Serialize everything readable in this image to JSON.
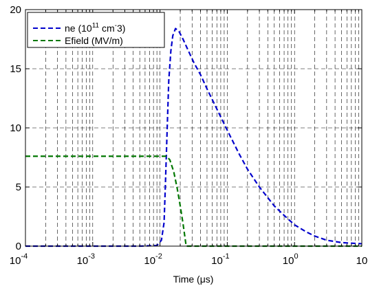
{
  "chart_data": {
    "type": "line",
    "title": "",
    "xlabel": "Time (μs)",
    "ylabel": "",
    "xscale": "log",
    "xlim": [
      0.0001,
      10
    ],
    "ylim": [
      0,
      20
    ],
    "grid": "dashed, major and minor on x, major on y",
    "x_ticks": [
      {
        "base": "10",
        "exp": "-4"
      },
      {
        "base": "10",
        "exp": "-3"
      },
      {
        "base": "10",
        "exp": "-2"
      },
      {
        "base": "10",
        "exp": "-1"
      },
      {
        "base": "10",
        "exp": "0"
      },
      {
        "base": "10",
        "exp": ""
      }
    ],
    "y_ticks": [
      "0",
      "5",
      "10",
      "15",
      "20"
    ],
    "legend_position": "top-left",
    "series": [
      {
        "name": "ne (10^11 cm^-3)",
        "legend": {
          "pre": "ne (10",
          "sup1": "11",
          "mid": " cm",
          "sup2": "-",
          "post": "3)"
        },
        "color": "#0000cc",
        "style": "dashed",
        "x": [
          0.0001,
          0.001,
          0.005,
          0.009,
          0.0105,
          0.0115,
          0.012,
          0.0128,
          0.0135,
          0.0145,
          0.0155,
          0.017,
          0.019,
          0.022,
          0.026,
          0.032,
          0.04,
          0.05,
          0.07,
          0.1,
          0.15,
          0.2,
          0.3,
          0.5,
          0.7,
          1,
          1.5,
          2,
          3,
          5,
          7,
          10
        ],
        "y": [
          0,
          0,
          0,
          0.05,
          0.5,
          2,
          5,
          10,
          14,
          16.5,
          17.8,
          18.4,
          18.2,
          17.5,
          16.6,
          15.5,
          14.5,
          13.3,
          11.6,
          9.8,
          7.8,
          6.5,
          5.0,
          3.4,
          2.6,
          1.8,
          1.2,
          0.85,
          0.5,
          0.3,
          0.25,
          0.2
        ]
      },
      {
        "name": "Efield (MV/m)",
        "color": "#007700",
        "style": "dashed",
        "x": [
          0.0001,
          0.001,
          0.01,
          0.0125,
          0.014,
          0.016,
          0.018,
          0.02,
          0.022,
          0.0245,
          0.03,
          0.1,
          1,
          10
        ],
        "y": [
          7.6,
          7.6,
          7.6,
          7.6,
          7.3,
          6.3,
          4.9,
          3.4,
          1.9,
          0,
          0,
          0,
          0,
          0
        ]
      }
    ]
  }
}
